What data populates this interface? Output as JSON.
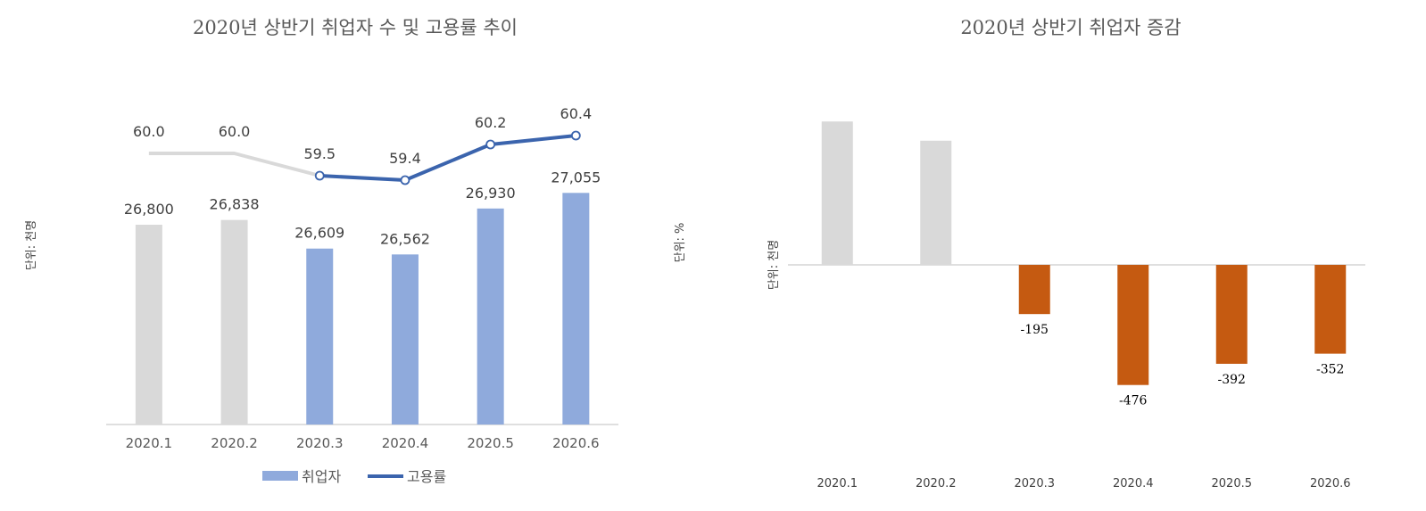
{
  "left_chart": {
    "title": "2020년 상반기 취업자 수 및 고용률 추이",
    "unit_left": "단위: 천명",
    "unit_right": "단위: %",
    "legend": {
      "bar_label": "취업자",
      "line_label": "고용률"
    }
  },
  "right_chart": {
    "title": "2020년 상반기 취업자 증감",
    "unit": "단위: 천명"
  },
  "colors": {
    "gray": "#d9d9d9",
    "bar_blue": "#8faadc",
    "line_blue": "#3b64ad",
    "orange": "#c55a11",
    "axis": "#bfbfbf"
  },
  "chart_data": [
    {
      "type": "bar",
      "title": "2020년 상반기 취업자 수 및 고용률 추이",
      "categories": [
        "2020.1",
        "2020.2",
        "2020.3",
        "2020.4",
        "2020.5",
        "2020.6"
      ],
      "series": [
        {
          "name": "취업자",
          "values": [
            26800,
            26838,
            26609,
            26562,
            26930,
            27055
          ],
          "labels": [
            "26,800",
            "26,838",
            "26,609",
            "26,562",
            "26,930",
            "27,055"
          ]
        },
        {
          "name": "고용률",
          "type": "line",
          "values": [
            60.0,
            60.0,
            59.5,
            59.4,
            60.2,
            60.4
          ],
          "labels": [
            "60.0",
            "60.0",
            "59.5",
            "59.4",
            "60.2",
            "60.4"
          ]
        }
      ],
      "highlight_from_index": 2,
      "legend_position": "bottom"
    },
    {
      "type": "bar",
      "title": "2020년 상반기 취업자 증감",
      "categories": [
        "2020.1",
        "2020.2",
        "2020.3",
        "2020.4",
        "2020.5",
        "2020.6"
      ],
      "values": [
        568,
        492,
        -195,
        -476,
        -392,
        -352
      ],
      "labels": [
        "",
        "",
        "-195",
        "-476",
        "-392",
        "-352"
      ],
      "highlight_from_index": 2
    }
  ]
}
